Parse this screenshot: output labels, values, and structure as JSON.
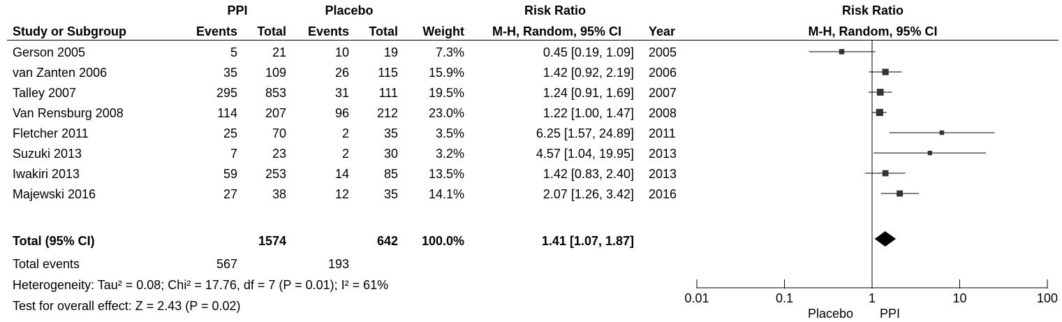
{
  "header": {
    "ppi": "PPI",
    "placebo": "Placebo",
    "risk_ratio_left": "Risk Ratio",
    "risk_ratio_right": "Risk Ratio",
    "study_or_subgroup": "Study or Subgroup",
    "events1": "Events",
    "total1": "Total",
    "events2": "Events",
    "total2": "Total",
    "weight": "Weight",
    "method_left": "M-H, Random, 95% CI",
    "year": "Year",
    "method_right": "M-H, Random, 95% CI"
  },
  "studies": [
    {
      "name": "Gerson 2005",
      "ppi_events": "5",
      "ppi_total": "21",
      "placebo_events": "10",
      "placebo_total": "19",
      "weight": "7.3%",
      "ci_text": "0.45 [0.19, 1.09]",
      "year": "2005"
    },
    {
      "name": "van Zanten 2006",
      "ppi_events": "35",
      "ppi_total": "109",
      "placebo_events": "26",
      "placebo_total": "115",
      "weight": "15.9%",
      "ci_text": "1.42 [0.92, 2.19]",
      "year": "2006"
    },
    {
      "name": "Talley 2007",
      "ppi_events": "295",
      "ppi_total": "853",
      "placebo_events": "31",
      "placebo_total": "111",
      "weight": "19.5%",
      "ci_text": "1.24 [0.91, 1.69]",
      "year": "2007"
    },
    {
      "name": "Van Rensburg 2008",
      "ppi_events": "114",
      "ppi_total": "207",
      "placebo_events": "96",
      "placebo_total": "212",
      "weight": "23.0%",
      "ci_text": "1.22 [1.00, 1.47]",
      "year": "2008"
    },
    {
      "name": "Fletcher 2011",
      "ppi_events": "25",
      "ppi_total": "70",
      "placebo_events": "2",
      "placebo_total": "35",
      "weight": "3.5%",
      "ci_text": "6.25 [1.57, 24.89]",
      "year": "2011"
    },
    {
      "name": "Suzuki 2013",
      "ppi_events": "7",
      "ppi_total": "23",
      "placebo_events": "2",
      "placebo_total": "30",
      "weight": "3.2%",
      "ci_text": "4.57 [1.04, 19.95]",
      "year": "2013"
    },
    {
      "name": "Iwakiri 2013",
      "ppi_events": "59",
      "ppi_total": "253",
      "placebo_events": "14",
      "placebo_total": "85",
      "weight": "13.5%",
      "ci_text": "1.42 [0.83, 2.40]",
      "year": "2013"
    },
    {
      "name": "Majewski 2016",
      "ppi_events": "27",
      "ppi_total": "38",
      "placebo_events": "12",
      "placebo_total": "35",
      "weight": "14.1%",
      "ci_text": "2.07 [1.26, 3.42]",
      "year": "2016"
    }
  ],
  "total": {
    "label": "Total (95% CI)",
    "ppi_total": "1574",
    "placebo_total": "642",
    "weight": "100.0%",
    "ci_text": "1.41 [1.07, 1.87]"
  },
  "total_events": {
    "label": "Total events",
    "ppi": "567",
    "placebo": "193"
  },
  "heterogeneity": "Heterogeneity: Tau² = 0.08; Chi² = 17.76, df = 7 (P = 0.01); I² = 61%",
  "overall_effect": "Test for overall effect: Z = 2.43 (P = 0.02)",
  "axis": {
    "ticks": [
      0.01,
      0.1,
      1,
      10,
      100
    ],
    "tick_labels": [
      "0.01",
      "0.1",
      "1",
      "10",
      "100"
    ],
    "left_label": "Placebo",
    "right_label": "PPI"
  },
  "chart_data": {
    "type": "forest",
    "scale": "log",
    "xlim": [
      0.01,
      100
    ],
    "null_value": 1,
    "points": [
      {
        "study": "Gerson 2005",
        "rr": 0.45,
        "lo": 0.19,
        "hi": 1.09,
        "weight": 7.3
      },
      {
        "study": "van Zanten 2006",
        "rr": 1.42,
        "lo": 0.92,
        "hi": 2.19,
        "weight": 15.9
      },
      {
        "study": "Talley 2007",
        "rr": 1.24,
        "lo": 0.91,
        "hi": 1.69,
        "weight": 19.5
      },
      {
        "study": "Van Rensburg 2008",
        "rr": 1.22,
        "lo": 1.0,
        "hi": 1.47,
        "weight": 23.0
      },
      {
        "study": "Fletcher 2011",
        "rr": 6.25,
        "lo": 1.57,
        "hi": 24.89,
        "weight": 3.5
      },
      {
        "study": "Suzuki 2013",
        "rr": 4.57,
        "lo": 1.04,
        "hi": 19.95,
        "weight": 3.2
      },
      {
        "study": "Iwakiri 2013",
        "rr": 1.42,
        "lo": 0.83,
        "hi": 2.4,
        "weight": 13.5
      },
      {
        "study": "Majewski 2016",
        "rr": 2.07,
        "lo": 1.26,
        "hi": 3.42,
        "weight": 14.1
      }
    ],
    "pooled": {
      "rr": 1.41,
      "lo": 1.07,
      "hi": 1.87
    }
  }
}
